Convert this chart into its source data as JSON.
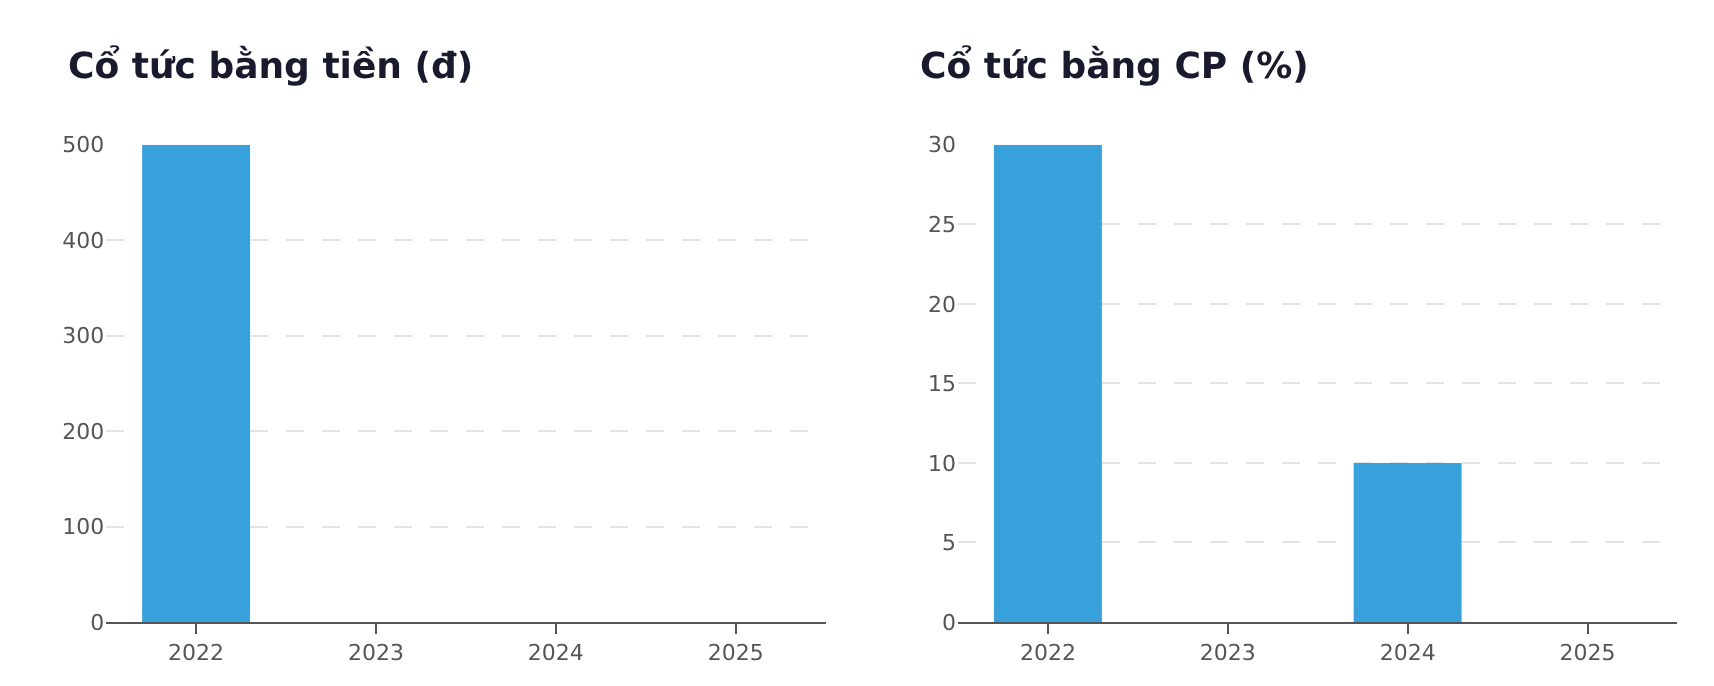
{
  "chart_data": [
    {
      "type": "bar",
      "title": "Cổ tức bằng tiền (đ)",
      "categories": [
        "2022",
        "2023",
        "2024",
        "2025"
      ],
      "values": [
        500,
        0,
        0,
        0
      ],
      "color": "#38a1db",
      "ylim": [
        0,
        500
      ],
      "yticks": [
        0,
        100,
        200,
        300,
        400,
        500
      ],
      "grid": "y"
    },
    {
      "type": "bar",
      "title": "Cổ tức bằng CP (%)",
      "categories": [
        "2022",
        "2023",
        "2024",
        "2025"
      ],
      "values": [
        30,
        0,
        10,
        0
      ],
      "color": "#38a1db",
      "ylim": [
        0,
        30
      ],
      "yticks": [
        0,
        5,
        10,
        15,
        20,
        25,
        30
      ],
      "grid": "y"
    }
  ]
}
